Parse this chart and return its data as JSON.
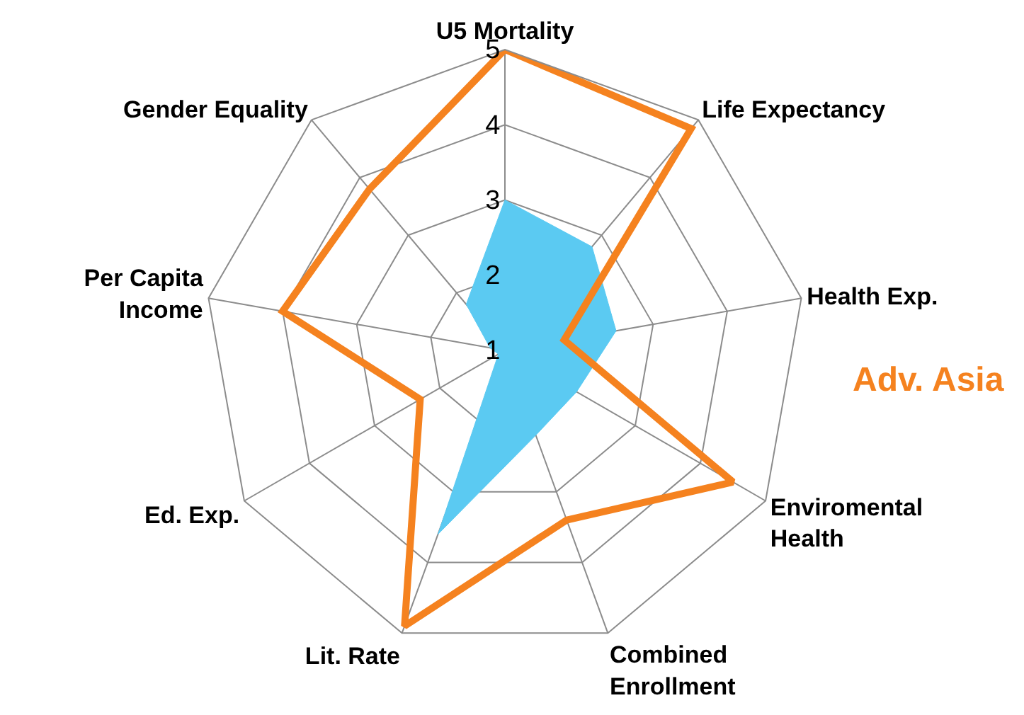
{
  "chart_data": {
    "type": "radar",
    "categories": [
      "U5 Mortality",
      "Life Expectancy",
      "Health Exp.",
      "Enviromental Health",
      "Combined Enrollment",
      "Lit. Rate",
      "Ed. Exp.",
      "Per Capita Income",
      "Gender Equality"
    ],
    "series": [
      {
        "type": "area",
        "color": "#5bcaf2",
        "values": [
          3.0,
          2.8,
          2.5,
          2.1,
          2.2,
          3.6,
          1.1,
          1.2,
          1.8
        ]
      },
      {
        "name": "Adv. Asia",
        "color": "#f5821f",
        "values": [
          5.0,
          4.85,
          1.8,
          4.5,
          3.4,
          4.9,
          2.3,
          4.0,
          3.8
        ]
      }
    ],
    "ylim": [
      1,
      5
    ],
    "yticks": [
      1,
      2,
      3,
      4,
      5
    ],
    "grid": true
  }
}
